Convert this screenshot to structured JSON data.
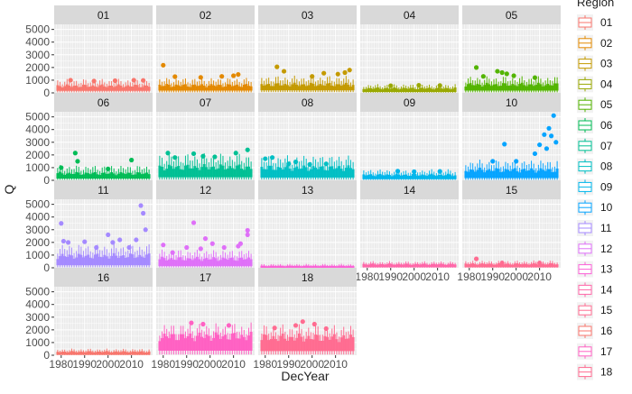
{
  "chart_data": {
    "type": "box",
    "layout": "facet_wrap",
    "xlabel": "DecYear",
    "ylabel": "Q",
    "legend": {
      "title": "Region",
      "position": "right",
      "glyph": "boxplot"
    },
    "x_ticks": [
      "1980",
      "1990",
      "2000",
      "2010"
    ],
    "xlim": [
      1977,
      2019
    ],
    "ylim": [
      0,
      5400
    ],
    "y_ticks": [
      "0",
      "1000",
      "2000",
      "3000",
      "4000",
      "5000"
    ],
    "y_tick_values": [
      0,
      1000,
      2000,
      3000,
      4000,
      5000
    ],
    "grid": true,
    "panels": [
      {
        "region": "01",
        "color": "#F8766D",
        "box": [
          40,
          180,
          350,
          520,
          880
        ],
        "outliers": [
          [
            1984,
            1000
          ],
          [
            1994,
            930
          ],
          [
            2003,
            960
          ],
          [
            2011,
            1000
          ],
          [
            2015,
            980
          ]
        ]
      },
      {
        "region": "02",
        "color": "#E38900",
        "box": [
          40,
          200,
          380,
          560,
          960
        ],
        "outliers": [
          [
            1980,
            2180
          ],
          [
            1985,
            1280
          ],
          [
            1996,
            1220
          ],
          [
            2005,
            1300
          ],
          [
            2010,
            1350
          ],
          [
            2012,
            1450
          ]
        ]
      },
      {
        "region": "03",
        "color": "#C49A00",
        "box": [
          60,
          220,
          420,
          620,
          1080
        ],
        "outliers": [
          [
            1985,
            2050
          ],
          [
            1988,
            1700
          ],
          [
            2000,
            1300
          ],
          [
            2005,
            1550
          ],
          [
            2011,
            1480
          ],
          [
            2014,
            1600
          ],
          [
            2016,
            1800
          ]
        ]
      },
      {
        "region": "04",
        "color": "#99A800",
        "box": [
          10,
          90,
          210,
          330,
          560
        ],
        "outliers": [
          [
            1990,
            560
          ],
          [
            2002,
            600
          ],
          [
            2011,
            580
          ]
        ]
      },
      {
        "region": "05",
        "color": "#53B400",
        "box": [
          40,
          200,
          430,
          620,
          1050
        ],
        "outliers": [
          [
            1983,
            2000
          ],
          [
            1986,
            1300
          ],
          [
            1992,
            1700
          ],
          [
            1994,
            1600
          ],
          [
            1996,
            1500
          ],
          [
            1999,
            1350
          ],
          [
            2008,
            1200
          ]
        ]
      },
      {
        "region": "06",
        "color": "#00BC56",
        "box": [
          40,
          160,
          330,
          520,
          950
        ],
        "outliers": [
          [
            1980,
            1000
          ],
          [
            1986,
            2150
          ],
          [
            1987,
            1500
          ],
          [
            2000,
            900
          ],
          [
            2010,
            1600
          ]
        ]
      },
      {
        "region": "07",
        "color": "#00C094",
        "box": [
          60,
          260,
          620,
          1000,
          1700
        ],
        "outliers": [
          [
            1982,
            2150
          ],
          [
            1985,
            1800
          ],
          [
            1993,
            2100
          ],
          [
            1997,
            1900
          ],
          [
            2002,
            1850
          ],
          [
            2011,
            2150
          ],
          [
            2016,
            2400
          ]
        ]
      },
      {
        "region": "08",
        "color": "#00BFC4",
        "box": [
          60,
          240,
          600,
          950,
          1600
        ],
        "outliers": [
          [
            1980,
            1700
          ],
          [
            1983,
            1800
          ],
          [
            1990,
            1300
          ],
          [
            1993,
            1450
          ],
          [
            1999,
            1250
          ],
          [
            2006,
            1300
          ]
        ]
      },
      {
        "region": "09",
        "color": "#00B6EB",
        "box": [
          30,
          110,
          270,
          400,
          700
        ],
        "outliers": [
          [
            1993,
            720
          ],
          [
            2000,
            680
          ],
          [
            2011,
            700
          ]
        ]
      },
      {
        "region": "10",
        "color": "#06A4FF",
        "box": [
          40,
          200,
          480,
          780,
          1300
        ],
        "outliers": [
          [
            1990,
            1500
          ],
          [
            1995,
            2850
          ],
          [
            2000,
            1500
          ],
          [
            2008,
            2100
          ],
          [
            2010,
            2800
          ],
          [
            2012,
            3600
          ],
          [
            2013,
            2500
          ],
          [
            2014,
            4100
          ],
          [
            2015,
            3500
          ],
          [
            2016,
            5100
          ],
          [
            2017,
            3000
          ]
        ]
      },
      {
        "region": "11",
        "color": "#A58AFF",
        "box": [
          40,
          220,
          520,
          900,
          1500
        ],
        "outliers": [
          [
            1980,
            3500
          ],
          [
            1981,
            2100
          ],
          [
            1983,
            2000
          ],
          [
            1990,
            2050
          ],
          [
            1995,
            1600
          ],
          [
            2000,
            2600
          ],
          [
            2002,
            2000
          ],
          [
            2005,
            2200
          ],
          [
            2009,
            1600
          ],
          [
            2012,
            2200
          ],
          [
            2014,
            4900
          ],
          [
            2015,
            4300
          ],
          [
            2016,
            3000
          ]
        ]
      },
      {
        "region": "12",
        "color": "#DF70F8",
        "box": [
          30,
          150,
          420,
          680,
          1150
        ],
        "outliers": [
          [
            1980,
            1800
          ],
          [
            1984,
            1200
          ],
          [
            1990,
            1600
          ],
          [
            1993,
            3550
          ],
          [
            1996,
            1500
          ],
          [
            1998,
            2300
          ],
          [
            2001,
            1900
          ],
          [
            2006,
            1600
          ],
          [
            2012,
            1700
          ],
          [
            2013,
            1900
          ],
          [
            2016,
            2600
          ],
          [
            2016,
            2950
          ]
        ]
      },
      {
        "region": "13",
        "color": "#FB61D7",
        "box": [
          0,
          20,
          60,
          130,
          250
        ],
        "outliers": []
      },
      {
        "region": "14",
        "color": "#FF66A8",
        "box": [
          10,
          60,
          160,
          260,
          420
        ],
        "outliers": []
      },
      {
        "region": "15",
        "color": "#FF6C91",
        "box": [
          10,
          60,
          170,
          280,
          460
        ],
        "outliers": [
          [
            1983,
            700
          ],
          [
            1994,
            380
          ],
          [
            2010,
            380
          ]
        ]
      },
      {
        "region": "16",
        "color": "#F8766D",
        "box": [
          10,
          50,
          140,
          250,
          420
        ],
        "outliers": []
      },
      {
        "region": "17",
        "color": "#FF61C3",
        "box": [
          60,
          380,
          900,
          1450,
          2050
        ],
        "outliers": [
          [
            1992,
            2550
          ],
          [
            1997,
            2450
          ],
          [
            2008,
            2350
          ]
        ]
      },
      {
        "region": "18",
        "color": "#FF6C91",
        "box": [
          60,
          350,
          800,
          1350,
          1950
        ],
        "outliers": [
          [
            1984,
            2150
          ],
          [
            1993,
            2350
          ],
          [
            1996,
            2650
          ],
          [
            2001,
            2450
          ],
          [
            2006,
            2100
          ]
        ]
      }
    ]
  },
  "legend_items": [
    {
      "label": "01",
      "color": "#F8766D"
    },
    {
      "label": "02",
      "color": "#E38900"
    },
    {
      "label": "03",
      "color": "#C49A00"
    },
    {
      "label": "04",
      "color": "#99A800"
    },
    {
      "label": "05",
      "color": "#53B400"
    },
    {
      "label": "06",
      "color": "#00BC56"
    },
    {
      "label": "07",
      "color": "#00C094"
    },
    {
      "label": "08",
      "color": "#00BFC4"
    },
    {
      "label": "09",
      "color": "#00B6EB"
    },
    {
      "label": "10",
      "color": "#06A4FF"
    },
    {
      "label": "11",
      "color": "#A58AFF"
    },
    {
      "label": "12",
      "color": "#DF70F8"
    },
    {
      "label": "13",
      "color": "#FB61D7"
    },
    {
      "label": "14",
      "color": "#FF66A8"
    },
    {
      "label": "15",
      "color": "#FF6C91"
    },
    {
      "label": "16",
      "color": "#F8766D"
    },
    {
      "label": "17",
      "color": "#FF61C3"
    },
    {
      "label": "18",
      "color": "#FF6C91"
    }
  ]
}
